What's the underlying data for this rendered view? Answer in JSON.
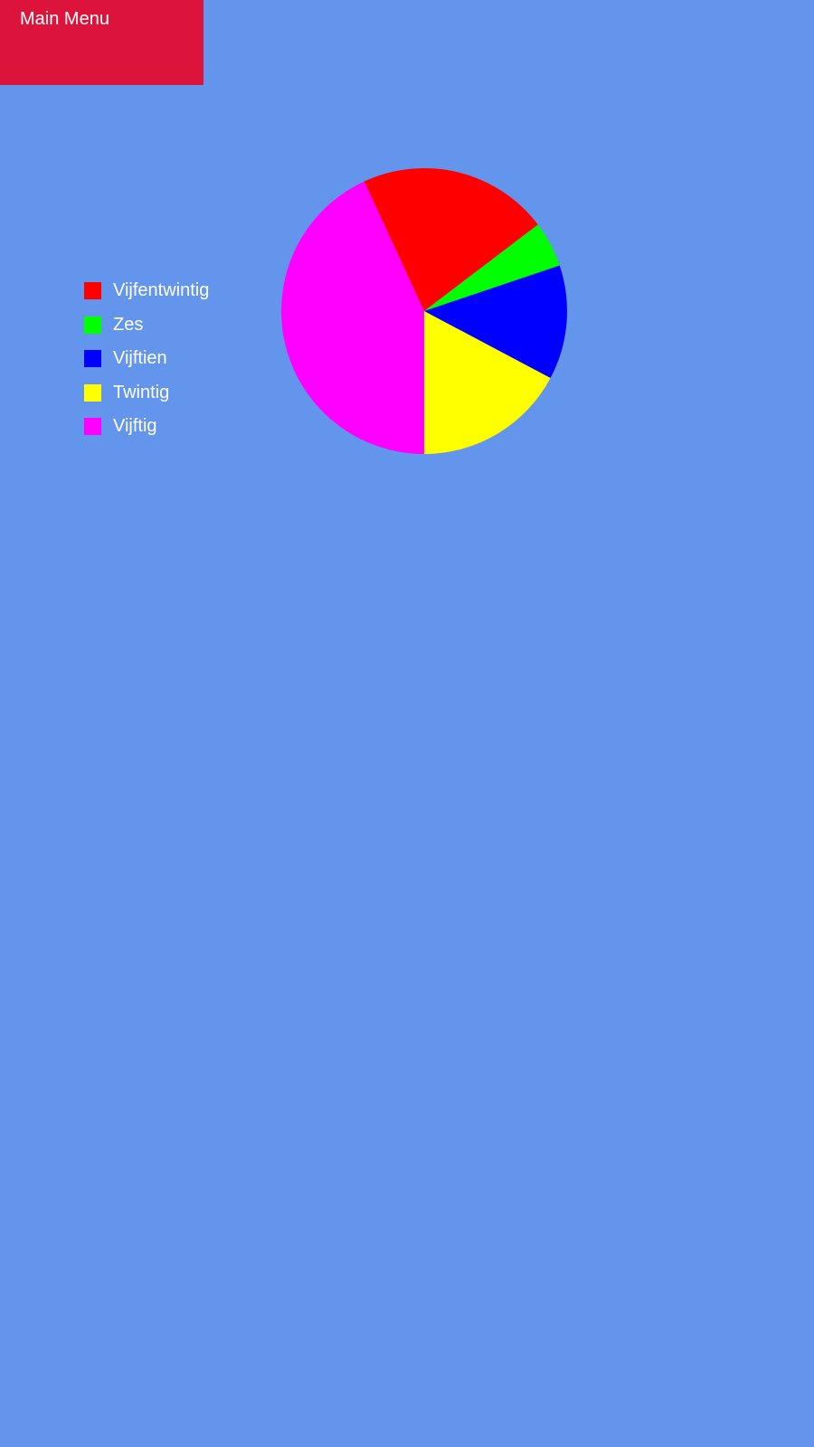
{
  "main_menu": {
    "label": "Main Menu",
    "color": "#DC143C"
  },
  "background_color": "#6495ED",
  "chart_data": {
    "type": "pie",
    "title": "",
    "legend_position": "left",
    "slices": [
      {
        "label": "Vijftig",
        "value": 50,
        "color": "#FF00FF"
      },
      {
        "label": "Vijfentwintig",
        "value": 25,
        "color": "#FF0000"
      },
      {
        "label": "Zes",
        "value": 6,
        "color": "#00FF00"
      },
      {
        "label": "Vijftien",
        "value": 15,
        "color": "#0000FF"
      },
      {
        "label": "Twintig",
        "value": 20,
        "color": "#FFFF00"
      }
    ],
    "legend": [
      {
        "label": "Vijfentwintig",
        "color": "#FF0000"
      },
      {
        "label": "Zes",
        "color": "#00FF00"
      },
      {
        "label": "Vijftien",
        "color": "#0000FF"
      },
      {
        "label": "Twintig",
        "color": "#FFFF00"
      },
      {
        "label": "Vijftig",
        "color": "#FF00FF"
      }
    ]
  }
}
